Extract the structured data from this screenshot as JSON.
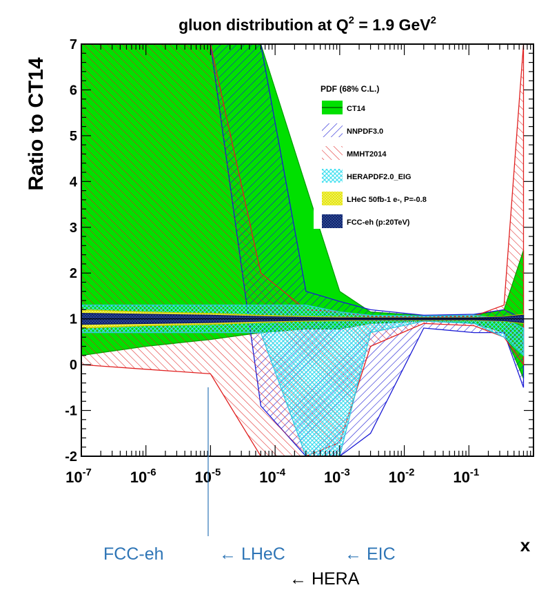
{
  "chart_data": {
    "type": "area",
    "title_main": "gluon distribution at Q",
    "title_sup1": "2",
    "title_mid": " = 1.9 GeV",
    "title_sup2": "2",
    "ylabel": "Ratio to CT14",
    "xlabel": "x",
    "xscale": "log",
    "xlim": [
      1e-07,
      1
    ],
    "ylim": [
      -2,
      7
    ],
    "y_ticks": [
      "-2",
      "-1",
      "0",
      "1",
      "2",
      "3",
      "4",
      "5",
      "6",
      "7"
    ],
    "x_ticks": [
      {
        "base": "10",
        "exp": "-7"
      },
      {
        "base": "10",
        "exp": "-6"
      },
      {
        "base": "10",
        "exp": "-5"
      },
      {
        "base": "10",
        "exp": "-4"
      },
      {
        "base": "10",
        "exp": "-3"
      },
      {
        "base": "10",
        "exp": "-2"
      },
      {
        "base": "10",
        "exp": "-1"
      }
    ],
    "legend_title": "PDF (68% C.L.)",
    "legend_position": "top-right",
    "x_grid": [
      1e-07,
      1e-06,
      1e-05,
      0.0001,
      0.001,
      0.01,
      0.1,
      0.7
    ],
    "series": [
      {
        "name": "CT14",
        "color": "#00e000",
        "upper": [
          7,
          7,
          7,
          7,
          3.9,
          1.6,
          1.15,
          1.07,
          1.08,
          1.2,
          2.5
        ],
        "lower": [
          0.2,
          0.4,
          0.55,
          0.7,
          0.78,
          0.78,
          0.9,
          0.95,
          0.9,
          0.7,
          -0.3
        ]
      },
      {
        "name": "NNPDF3.0",
        "color": "#1a1ad4",
        "upper": [
          7,
          7,
          7,
          7,
          1.6,
          1.38,
          1.2,
          1.08,
          1.1,
          1.2,
          1.0
        ],
        "lower": [
          7,
          7,
          7,
          -0.9,
          -2,
          -2,
          -1.5,
          0.8,
          0.7,
          0.7,
          -0.5
        ]
      },
      {
        "name": "MMHT2014",
        "color": "#e02020",
        "upper": [
          7,
          7,
          7,
          2.0,
          1.2,
          1.15,
          1.05,
          1.04,
          1.06,
          1.3,
          7
        ],
        "lower": [
          0,
          -0.1,
          -0.2,
          -2,
          -2,
          -1.7,
          0.4,
          0.9,
          0.85,
          0.6,
          0
        ]
      },
      {
        "name": "HERAPDF2.0_EIG",
        "color": "#40e0f0",
        "upper": [
          1.3,
          1.3,
          1.3,
          1.3,
          1.3,
          1.15,
          1.08,
          1.06,
          1.08,
          1.0,
          0.8
        ],
        "lower": [
          0.7,
          0.7,
          0.7,
          0.7,
          -2,
          -2,
          0.7,
          0.95,
          0.9,
          0.6,
          0.2
        ]
      },
      {
        "name": "LHeC 50fb-1 e-, P=-0.8",
        "color": "#f0f000",
        "upper": [
          1.2,
          1.15,
          1.12,
          1.08,
          1.05,
          1.04,
          1.03,
          1.03,
          1.03,
          1.05,
          1.1
        ],
        "lower": [
          0.8,
          0.85,
          0.88,
          0.92,
          0.95,
          0.96,
          0.97,
          0.97,
          0.97,
          0.95,
          0.9
        ]
      },
      {
        "name": "FCC-eh (p:20TeV)",
        "color": "#0a1a6a",
        "upper": [
          1.12,
          1.1,
          1.08,
          1.05,
          1.03,
          1.02,
          1.02,
          1.02,
          1.02,
          1.04,
          1.08
        ],
        "lower": [
          0.88,
          0.9,
          0.92,
          0.95,
          0.97,
          0.98,
          0.98,
          0.98,
          0.98,
          0.96,
          0.92
        ]
      }
    ],
    "band_x": [
      1e-07,
      1e-06,
      1e-05,
      6e-05,
      0.0003,
      0.001,
      0.003,
      0.02,
      0.12,
      0.35,
      0.7
    ]
  },
  "annotations": {
    "fcc": "FCC-eh",
    "lhec": "← LHeC",
    "eic": "← EIC",
    "hera": "← HERA"
  }
}
